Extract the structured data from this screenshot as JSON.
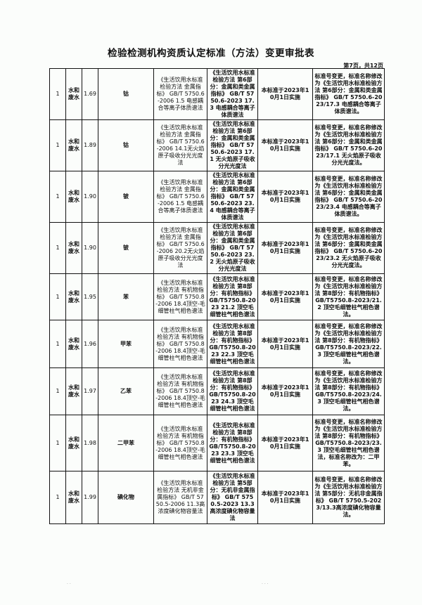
{
  "title": "检验检测机构资质认定标准（方法）变更审批表",
  "page_indicator": "第7页，共12页",
  "rows": [
    {
      "seq": "1",
      "category": "水和废水",
      "no": "1.69",
      "item": "钴",
      "old_standard": "《生活饮用水标准检验方法 金属指标》 GB/T 5750.6-2006 1.5 电感耦合等离子体质谱法",
      "new_standard": "《生活饮用水标准检验方法 第6部分：金属和类金属指标》 GB/T 5750.6-2023 17.3 电感耦合等离子体质谱法",
      "implementation": "本标准于2023年10月1日实施",
      "remark": "标准号变更，标准名称修改为《生活饮用水标准检验方法 第6部分：金属和类金属指标》 GB/T 5750.6-2023/17.3 电感耦合等离子体质谱法。"
    },
    {
      "seq": "1",
      "category": "水和废水",
      "no": "1.89",
      "item": "钴",
      "old_standard": "《生活饮用水标准检验方法 金属指标》 GB/T 5750.6-2006 14.1无火焰原子吸收分光光度法",
      "new_standard": "《生活饮用水标准检验方法 第6部分：金属和类金属指标》 GB/T 5750.6-2023 17.1 无火焰原子吸收分光光度法",
      "implementation": "本标准于2023年10月1日实施",
      "remark": "标准号变更，标准名称修改为《生活饮用水标准检验方法 第6部分：金属和类金属指标》 GB/T 5750.6-2023/17.1 无火焰原子吸收分光光度法。"
    },
    {
      "seq": "1",
      "category": "水和废水",
      "no": "1.90",
      "item": "铍",
      "old_standard": "《生活饮用水标准检验方法 金属指标》 GB/T 5750.6-2006 1.5 电感耦合等离子体质谱法",
      "new_standard": "《生活饮用水标准检验方法 第6部分：金属和类金属指标》 GB/T 5750.6-2023 23.4 电感耦合等离子体质谱法",
      "implementation": "本标准于2023年10月1日实施",
      "remark": "标准号变更，标准名称修改为《生活饮用水标准检验方法 第6部分：金属和类金属指标》 GB/T 5750.6-2023/23.4 电感耦合等离子体质谱法。"
    },
    {
      "seq": "1",
      "category": "水和废水",
      "no": "1.90",
      "item": "铍",
      "old_standard": "《生活饮用水标准检验方法 金属指标》 GB/T 5750.6-2006 20.2无火焰原子吸收分光光度法",
      "new_standard": "《生活饮用水标准检验方法 第6部分：金属和类金属指标》 GB/T 5750.6-2023 23.2 无火焰原子吸收分光光度法",
      "implementation": "本标准于2023年10月1日实施",
      "remark": "标准号变更，标准名称修改为《生活饮用水标准检验方法 第6部分：金属和类金属指标》 GB/T 5750.6-2023/23.2 无火焰原子吸收分光光度法。"
    },
    {
      "seq": "1",
      "category": "水和废水",
      "no": "1.95",
      "item": "苯",
      "old_standard": "《生活饮用水标准检验方法 有机物指标》 GB/T 5750.8-2006 18.4顶空-毛细管柱气相色谱法",
      "new_standard": "《生活饮用水标准检验方法 第8部分：有机物指标》 GB/T5750.8-2023 21.2 顶空毛细管柱气相色谱法",
      "implementation": "本标准于2023年10月1日实施",
      "remark": "标准号变更，标准名称修改为《生活饮用水标准检验方法 第8部分：有机物指标》 GB/T5750.8-2023/21.2 顶空毛细管柱气相色谱法。"
    },
    {
      "seq": "1",
      "category": "水和废水",
      "no": "1.96",
      "item": "甲苯",
      "old_standard": "《生活饮用水标准检验方法 有机物指标》 GB/T 5750.8-2006 18.4顶空-毛细管柱气相色谱法",
      "new_standard": "《生活饮用水标准检验方法 第8部分：有机物指标》 GB/T5750.8-2023 22.3 顶空毛细管柱气相色谱法",
      "implementation": "本标准于2023年10月1日实施",
      "remark": "标准号变更，标准名称修改为《生活饮用水标准检验方法 第8部分：有机物指标》 GB/T5750.8-2023/22.3 顶空毛细管柱气相色谱法。"
    },
    {
      "seq": "1",
      "category": "水和废水",
      "no": "1.97",
      "item": "乙苯",
      "old_standard": "《生活饮用水标准检验方法 有机物指标》 GB/T 5750.8-2006 18.4顶空-毛细管柱气相色谱法",
      "new_standard": "《生活饮用水标准检验方法 第8部分：有机物指标》 GB/T5750.8-2023 24.3 顶空毛细管柱气相色谱法",
      "implementation": "本标准于2023年10月1日实施",
      "remark": "标准号变更，标准名称修改为《生活饮用水标准检验方法 第8部分：有机物指标》 GB/T5750.8-2023/24.3 顶空毛细管柱气相色谱法。"
    },
    {
      "seq": "1",
      "category": "水和废水",
      "no": "1.98",
      "item": "二甲苯",
      "old_standard": "《生活饮用水标准检验方法 有机物指标》 GB/T 5750.8-2006 18.4顶空-毛细管柱气相色谱法",
      "new_standard": "《生活饮用水标准检验方法 第8部分：有机物指标》 GB/T5750.8-2023 23.3 顶空毛细管柱气相色谱法",
      "implementation": "本标准于2023年10月1日实施",
      "remark": "标准号变更，标准名称修改为《生活饮用水标准检验方法 第8部分：有机物指标》 GB/T5750.8-2023/23.3 顶空毛细管柱气相色谱法，标准名称改为：二甲苯。"
    },
    {
      "seq": "1",
      "category": "水和废水",
      "no": "1.99",
      "item": "碘化物",
      "old_standard": "《生活饮用水标准检验方法 无机非金属指标》 GB/T 5750.5-2006 11.3高浓度碘化物容量法",
      "new_standard": "《生活饮用水标准检验方法 第5部分：无机非金属指标》 GB/T 5750.5-2023 13.3高浓度碘化物容量法",
      "implementation": "本标准于2023年10月1日实施",
      "remark": "标准号变更，标准名称修改为《生活饮用水标准检验方法 第5部分：无机非金属指标》 GB/T 5750.5-2023/13.3高浓度碘化物容量法。"
    }
  ]
}
